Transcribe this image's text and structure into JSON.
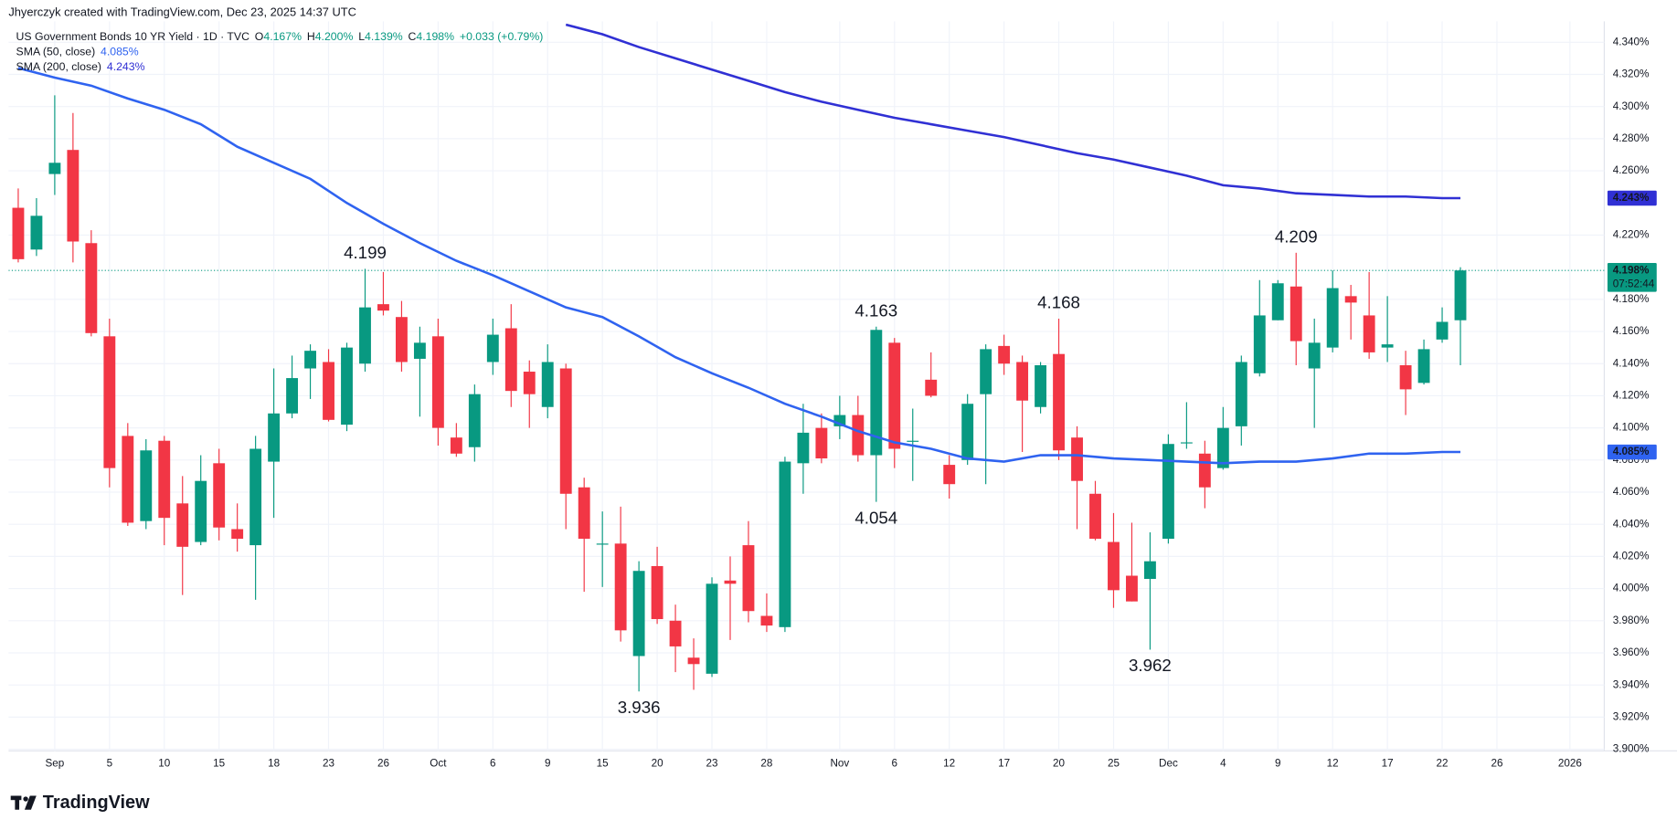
{
  "chart_data": {
    "type": "candlestick",
    "header": "Jhyerczyk created with TradingView.com, Dec 23, 2025 14:37 UTC",
    "title": "US Government Bonds 10 YR Yield · 1D · TVC",
    "ohlc_legend": [
      {
        "key": "O",
        "value": "4.167%"
      },
      {
        "key": "H",
        "value": "4.200%"
      },
      {
        "key": "L",
        "value": "4.139%"
      },
      {
        "key": "C",
        "value": "4.198%"
      }
    ],
    "change": "+0.033 (+0.79%)",
    "up_color": "#089981",
    "down_color": "#f23645",
    "open": [
      4.237,
      4.211,
      4.258,
      4.273,
      4.215,
      4.157,
      4.095,
      4.042,
      4.092,
      4.053,
      4.029,
      4.078,
      4.037,
      4.027,
      4.079,
      4.109,
      4.137,
      4.141,
      4.102,
      4.14,
      4.177,
      4.169,
      4.143,
      4.157,
      4.094,
      4.088,
      4.141,
      4.162,
      4.135,
      4.113,
      4.137,
      4.063,
      4.028,
      4.028,
      3.958,
      4.014,
      3.98,
      3.957,
      3.947,
      4.005,
      4.027,
      3.983,
      3.976,
      4.078,
      4.1,
      4.101,
      4.108,
      4.083,
      4.153,
      4.092,
      4.13,
      4.077,
      4.08,
      4.121,
      4.151,
      4.141,
      4.113,
      4.146,
      4.094,
      4.059,
      4.029,
      4.008,
      4.006,
      4.031,
      4.091,
      4.084,
      4.075,
      4.101,
      4.134,
      4.167,
      4.188,
      4.137,
      4.15,
      4.182,
      4.17,
      4.15,
      4.139,
      4.128,
      4.155,
      4.167
    ],
    "high": [
      4.249,
      4.243,
      4.307,
      4.296,
      4.223,
      4.168,
      4.103,
      4.093,
      4.095,
      4.07,
      4.083,
      4.087,
      4.053,
      4.095,
      4.137,
      4.145,
      4.152,
      4.149,
      4.153,
      4.199,
      4.197,
      4.179,
      4.163,
      4.168,
      4.103,
      4.127,
      4.168,
      4.177,
      4.142,
      4.152,
      4.14,
      4.069,
      4.048,
      4.051,
      4.017,
      4.026,
      3.99,
      3.969,
      4.007,
      4.02,
      4.042,
      3.997,
      4.082,
      4.115,
      4.109,
      4.12,
      4.12,
      4.163,
      4.156,
      4.112,
      4.147,
      4.083,
      4.121,
      4.152,
      4.158,
      4.145,
      4.141,
      4.168,
      4.101,
      4.067,
      4.047,
      4.041,
      4.035,
      4.096,
      4.116,
      4.092,
      4.113,
      4.145,
      4.192,
      4.192,
      4.209,
      4.168,
      4.198,
      4.189,
      4.197,
      4.182,
      4.148,
      4.155,
      4.175,
      4.2
    ],
    "low": [
      4.203,
      4.207,
      4.245,
      4.203,
      4.157,
      4.063,
      4.039,
      4.037,
      4.027,
      3.996,
      4.027,
      4.03,
      4.023,
      3.993,
      4.044,
      4.106,
      4.118,
      4.104,
      4.098,
      4.135,
      4.17,
      4.135,
      4.107,
      4.089,
      4.082,
      4.079,
      4.133,
      4.113,
      4.1,
      4.106,
      4.037,
      3.998,
      4.001,
      3.967,
      3.936,
      3.978,
      3.948,
      3.937,
      3.945,
      3.968,
      3.979,
      3.973,
      3.973,
      4.059,
      4.078,
      4.093,
      4.079,
      4.054,
      4.075,
      4.067,
      4.119,
      4.056,
      4.077,
      4.065,
      4.133,
      4.085,
      4.109,
      4.08,
      4.037,
      4.03,
      3.988,
      3.992,
      3.962,
      4.028,
      4.087,
      4.05,
      4.074,
      4.089,
      4.132,
      4.167,
      4.139,
      4.1,
      4.147,
      4.155,
      4.143,
      4.141,
      4.108,
      4.127,
      4.153,
      4.139
    ],
    "close": [
      4.205,
      4.232,
      4.265,
      4.216,
      4.159,
      4.075,
      4.041,
      4.086,
      4.044,
      4.026,
      4.067,
      4.038,
      4.031,
      4.087,
      4.109,
      4.131,
      4.148,
      4.105,
      4.15,
      4.175,
      4.173,
      4.141,
      4.153,
      4.1,
      4.084,
      4.121,
      4.158,
      4.123,
      4.121,
      4.141,
      4.059,
      4.031,
      4.028,
      3.974,
      4.011,
      3.981,
      3.964,
      3.953,
      4.003,
      4.003,
      3.986,
      3.977,
      4.079,
      4.097,
      4.081,
      4.108,
      4.083,
      4.161,
      4.087,
      4.092,
      4.12,
      4.065,
      4.115,
      4.149,
      4.14,
      4.117,
      4.139,
      4.086,
      4.067,
      4.031,
      3.999,
      3.992,
      4.017,
      4.09,
      4.091,
      4.063,
      4.1,
      4.141,
      4.17,
      4.19,
      4.154,
      4.153,
      4.187,
      4.178,
      4.147,
      4.152,
      4.124,
      4.149,
      4.166,
      4.198
    ],
    "lines": [
      {
        "name": "SMA (50, close)",
        "legend_value": "4.085%",
        "color": "#2f63f0",
        "x": [
          0,
          2,
          4,
          6,
          8,
          10,
          12,
          14,
          16,
          18,
          20,
          22,
          24,
          26,
          28,
          30,
          32,
          34,
          36,
          38,
          40,
          42,
          44,
          46,
          48,
          50,
          52,
          54,
          56,
          58,
          60,
          62,
          64,
          66,
          68,
          70,
          72,
          74,
          76,
          78,
          79
        ],
        "values": [
          4.324,
          4.318,
          4.313,
          4.305,
          4.298,
          4.289,
          4.275,
          4.265,
          4.255,
          4.24,
          4.227,
          4.215,
          4.204,
          4.195,
          4.185,
          4.175,
          4.169,
          4.157,
          4.144,
          4.134,
          4.125,
          4.115,
          4.107,
          4.098,
          4.091,
          4.087,
          4.081,
          4.079,
          4.083,
          4.083,
          4.081,
          4.08,
          4.079,
          4.078,
          4.079,
          4.079,
          4.081,
          4.084,
          4.084,
          4.085,
          4.085
        ]
      },
      {
        "name": "SMA (200, close)",
        "legend_value": "4.243%",
        "color": "#3030d4",
        "x": [
          30,
          32,
          34,
          36,
          38,
          40,
          42,
          44,
          46,
          48,
          50,
          52,
          54,
          56,
          58,
          60,
          62,
          64,
          66,
          68,
          70,
          72,
          74,
          76,
          78,
          79
        ],
        "values": [
          4.351,
          4.345,
          4.337,
          4.33,
          4.323,
          4.316,
          4.309,
          4.303,
          4.298,
          4.293,
          4.289,
          4.285,
          4.281,
          4.276,
          4.271,
          4.267,
          4.262,
          4.257,
          4.251,
          4.249,
          4.246,
          4.245,
          4.244,
          4.244,
          4.243,
          4.243
        ]
      }
    ],
    "xlim": [
      -0.53,
      86.88
    ],
    "ylim": [
      3.899,
      4.353
    ],
    "yticks": [
      {
        "value": 4.34,
        "label": "4.340%"
      },
      {
        "value": 4.32,
        "label": "4.320%"
      },
      {
        "value": 4.3,
        "label": "4.300%"
      },
      {
        "value": 4.28,
        "label": "4.280%"
      },
      {
        "value": 4.26,
        "label": "4.260%"
      },
      {
        "value": 4.22,
        "label": "4.220%"
      },
      {
        "value": 4.18,
        "label": "4.180%"
      },
      {
        "value": 4.16,
        "label": "4.160%"
      },
      {
        "value": 4.14,
        "label": "4.140%"
      },
      {
        "value": 4.12,
        "label": "4.120%"
      },
      {
        "value": 4.1,
        "label": "4.100%"
      },
      {
        "value": 4.08,
        "label": "4.080%"
      },
      {
        "value": 4.06,
        "label": "4.060%"
      },
      {
        "value": 4.04,
        "label": "4.040%"
      },
      {
        "value": 4.02,
        "label": "4.020%"
      },
      {
        "value": 4.0,
        "label": "4.000%"
      },
      {
        "value": 3.98,
        "label": "3.980%"
      },
      {
        "value": 3.96,
        "label": "3.960%"
      },
      {
        "value": 3.94,
        "label": "3.940%"
      },
      {
        "value": 3.92,
        "label": "3.920%"
      },
      {
        "value": 3.9,
        "label": "3.900%"
      }
    ],
    "xticks": [
      {
        "value": 2,
        "label": "Sep"
      },
      {
        "value": 5,
        "label": "5"
      },
      {
        "value": 8,
        "label": "10"
      },
      {
        "value": 11,
        "label": "15"
      },
      {
        "value": 14,
        "label": "18"
      },
      {
        "value": 17,
        "label": "23"
      },
      {
        "value": 20,
        "label": "26"
      },
      {
        "value": 23,
        "label": "Oct"
      },
      {
        "value": 26,
        "label": "6"
      },
      {
        "value": 29,
        "label": "9"
      },
      {
        "value": 32,
        "label": "15"
      },
      {
        "value": 35,
        "label": "20"
      },
      {
        "value": 38,
        "label": "23"
      },
      {
        "value": 41,
        "label": "28"
      },
      {
        "value": 45,
        "label": "Nov"
      },
      {
        "value": 48,
        "label": "6"
      },
      {
        "value": 51,
        "label": "12"
      },
      {
        "value": 54,
        "label": "17"
      },
      {
        "value": 57,
        "label": "20"
      },
      {
        "value": 60,
        "label": "25"
      },
      {
        "value": 63,
        "label": "Dec"
      },
      {
        "value": 66,
        "label": "4"
      },
      {
        "value": 69,
        "label": "9"
      },
      {
        "value": 72,
        "label": "12"
      },
      {
        "value": 75,
        "label": "17"
      },
      {
        "value": 78,
        "label": "22"
      },
      {
        "value": 81,
        "label": "26"
      },
      {
        "value": 85,
        "label": "2026"
      }
    ],
    "grid": true,
    "annotations": [
      {
        "value": 4.199,
        "index": 19,
        "position": "above"
      },
      {
        "value": 4.163,
        "index": 47,
        "position": "above"
      },
      {
        "value": 4.168,
        "index": 57,
        "position": "above"
      },
      {
        "value": 4.209,
        "index": 70,
        "position": "above"
      },
      {
        "value": 4.054,
        "index": 47,
        "position": "below"
      },
      {
        "value": 3.936,
        "index": 34,
        "position": "below"
      },
      {
        "value": 3.962,
        "index": 62,
        "position": "below"
      }
    ],
    "price_labels": [
      {
        "value": 4.243,
        "label": "4.243%",
        "color": "#3030d4"
      },
      {
        "value": 4.198,
        "label": "4.198%",
        "color": "#089981",
        "countdown": "07:52:44"
      },
      {
        "value": 4.085,
        "label": "4.085%",
        "color": "#2f63f0"
      }
    ],
    "brand": "TradingView"
  }
}
